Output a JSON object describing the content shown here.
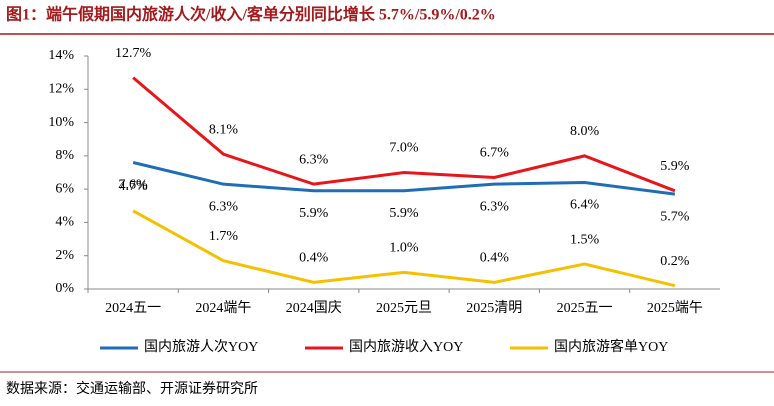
{
  "chart_data": {
    "type": "line",
    "title": "图1：端午假期国内旅游人次/收入/客单分别同比增长 5.7%/5.9%/0.2%",
    "source": "数据来源：交通运输部、开源证券研究所",
    "categories": [
      "2024五一",
      "2024端午",
      "2024国庆",
      "2025元旦",
      "2025清明",
      "2025五一",
      "2025端午"
    ],
    "series": [
      {
        "name": "国内旅游人次YOY",
        "color": "#1f6eb5",
        "values": [
          7.6,
          6.3,
          5.9,
          5.9,
          6.3,
          6.4,
          5.7
        ],
        "value_labels": [
          "7.6%",
          "6.3%",
          "5.9%",
          "5.9%",
          "6.3%",
          "6.4%",
          "5.7%"
        ]
      },
      {
        "name": "国内旅游收入YOY",
        "color": "#e8161b",
        "values": [
          12.7,
          8.1,
          6.3,
          7.0,
          6.7,
          8.0,
          5.9
        ],
        "value_labels": [
          "12.7%",
          "8.1%",
          "6.3%",
          "7.0%",
          "6.7%",
          "8.0%",
          "5.9%"
        ]
      },
      {
        "name": "国内旅游客单YOY",
        "color": "#f5c000",
        "values": [
          4.7,
          1.7,
          0.4,
          1.0,
          0.4,
          1.5,
          0.2
        ],
        "value_labels": [
          "4.7%",
          "1.7%",
          "0.4%",
          "1.0%",
          "0.4%",
          "1.5%",
          "0.2%"
        ]
      }
    ],
    "ylim": [
      0,
      14
    ],
    "yticks": [
      {
        "value": 0,
        "label": "0%"
      },
      {
        "value": 2,
        "label": "2%"
      },
      {
        "value": 4,
        "label": "4%"
      },
      {
        "value": 6,
        "label": "6%"
      },
      {
        "value": 8,
        "label": "8%"
      },
      {
        "value": 10,
        "label": "10%"
      },
      {
        "value": 12,
        "label": "12%"
      },
      {
        "value": 14,
        "label": "14%"
      }
    ],
    "grid": false
  }
}
